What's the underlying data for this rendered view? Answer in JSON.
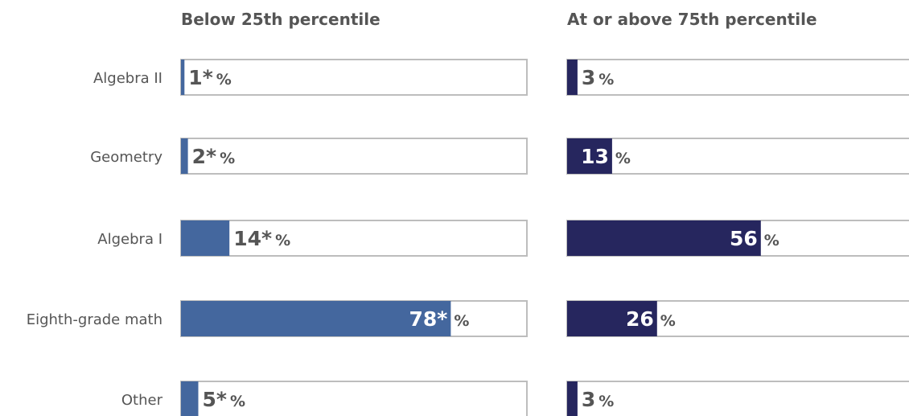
{
  "chart_data": {
    "type": "bar",
    "orientation": "horizontal",
    "categories": [
      "Algebra II",
      "Geometry",
      "Algebra I",
      "Eighth-grade math",
      "Other"
    ],
    "xlim": [
      0,
      100
    ],
    "grid": false,
    "unit": "%",
    "panels": [
      {
        "title": "Below 25th percentile",
        "color": "#44679e",
        "values": [
          1,
          2,
          14,
          78,
          5
        ],
        "labels": [
          "1*",
          "2*",
          "14*",
          "78*",
          "5*"
        ]
      },
      {
        "title": "At or above 75th percentile",
        "color": "#26265e",
        "values": [
          3,
          13,
          56,
          26,
          3
        ],
        "labels": [
          "3",
          "13",
          "56",
          "26",
          "3"
        ]
      }
    ]
  }
}
